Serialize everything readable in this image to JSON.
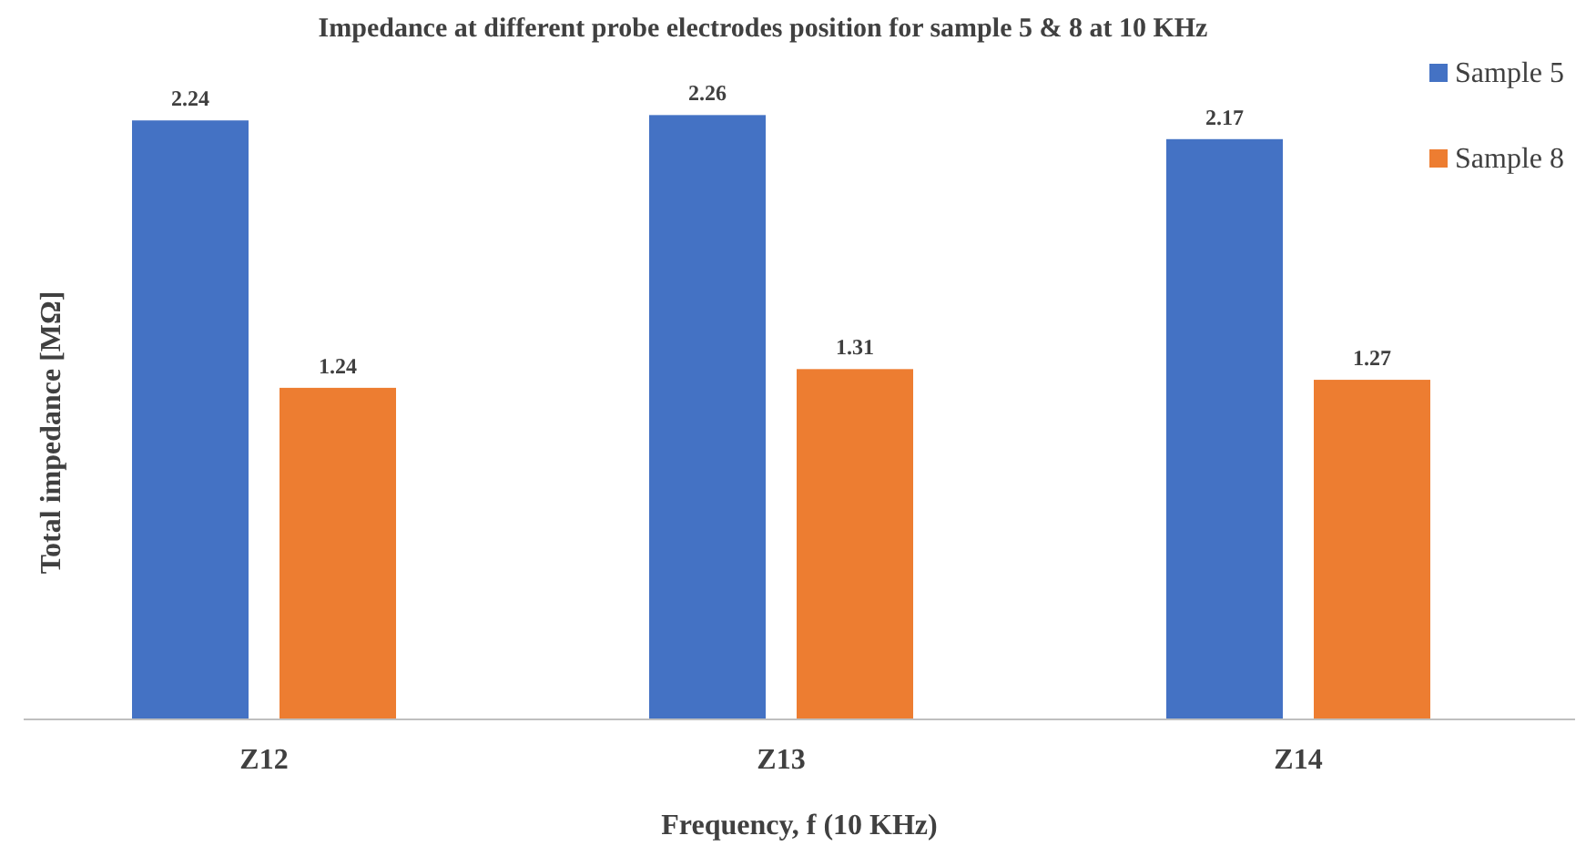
{
  "chart_data": {
    "type": "bar",
    "title": "Impedance at different probe electrodes position for sample 5 & 8 at 10 KHz",
    "xlabel": "Frequency, f (10 KHz)",
    "ylabel": "Total impedance  [MΩ]",
    "categories": [
      "Z12",
      "Z13",
      "Z14"
    ],
    "series": [
      {
        "name": "Sample 5",
        "color": "#4472c4",
        "values": [
          2.24,
          2.26,
          2.17
        ]
      },
      {
        "name": "Sample 8",
        "color": "#ed7d31",
        "values": [
          1.24,
          1.31,
          1.27
        ]
      }
    ],
    "data_labels": true,
    "legend": "top right",
    "tick_labels": "x"
  }
}
